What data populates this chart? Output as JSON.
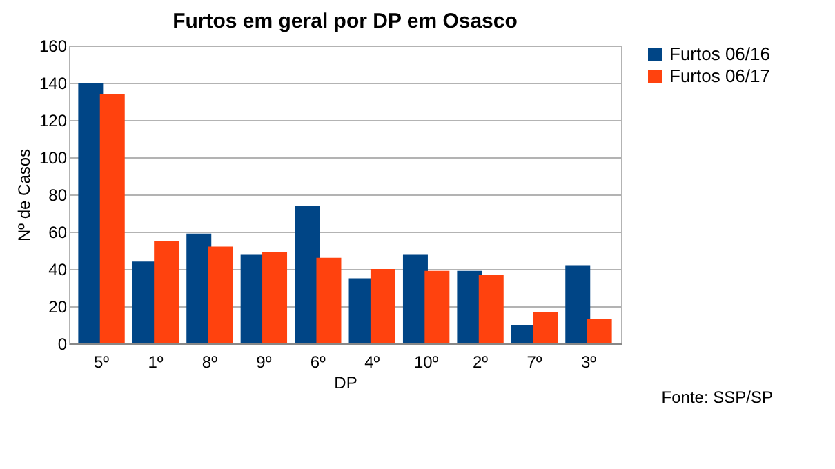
{
  "chart_data": {
    "type": "bar",
    "title": "Furtos em geral por DP em Osasco",
    "xlabel": "DP",
    "ylabel": "Nº de Casos",
    "categories": [
      "5º",
      "1º",
      "8º",
      "9º",
      "6º",
      "4º",
      "10º",
      "2º",
      "7º",
      "3º"
    ],
    "series": [
      {
        "name": "Furtos 06/16",
        "color": "#004586",
        "values": [
          140,
          44,
          59,
          48,
          74,
          35,
          48,
          39,
          10,
          42
        ]
      },
      {
        "name": "Furtos 06/17",
        "color": "#ff420e",
        "values": [
          134,
          55,
          52,
          49,
          46,
          40,
          39,
          37,
          17,
          13
        ]
      }
    ],
    "ylim": [
      0,
      160
    ],
    "yticks": [
      0,
      20,
      40,
      60,
      80,
      100,
      120,
      140,
      160
    ],
    "grid": "y",
    "legend": "right",
    "annotations": [
      "Fonte: SSP/SP"
    ]
  }
}
